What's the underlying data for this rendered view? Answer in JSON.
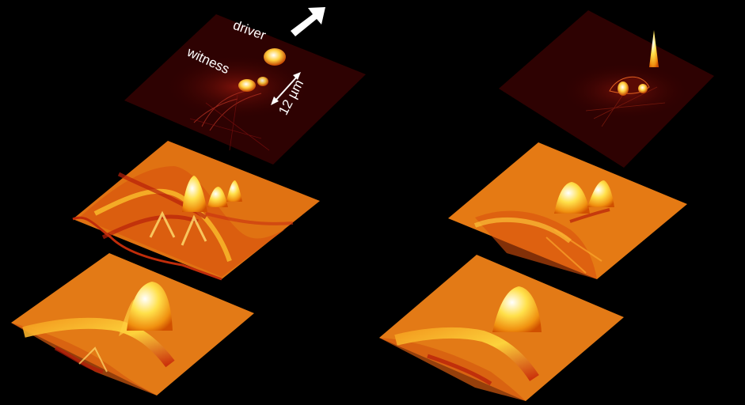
{
  "figure": {
    "background_color": "#000000",
    "labels": {
      "driver": "driver",
      "witness": "witness",
      "scale": "12 µm"
    },
    "icons": {
      "direction_arrow": "up-right-arrow-icon",
      "scale_arrow": "double-headed-arrow-icon"
    },
    "colors": {
      "density_low": "#2a0000",
      "density_mid": "#a01010",
      "surface_base": "#e0700e",
      "surface_peak": "#fff2d0",
      "surface_trough": "#b31a0a"
    }
  }
}
